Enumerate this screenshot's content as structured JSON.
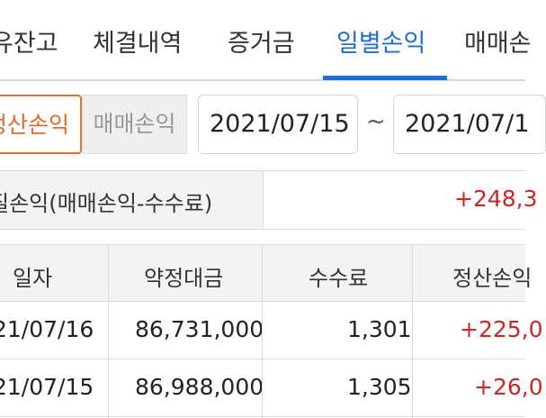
{
  "tabs": [
    {
      "label": "유잔고"
    },
    {
      "label": "체결내역"
    },
    {
      "label": "증거금"
    },
    {
      "label": "일별손익"
    },
    {
      "label": "매매손"
    }
  ],
  "active_tab": "일별손익",
  "filter": {
    "settlement_toggle_label": "정산손익",
    "trade_toggle_label": "매매손익",
    "date_from": "2021/07/15",
    "separator": "~",
    "date_to": "2021/07/1"
  },
  "summary": {
    "label": "질손익(매매손익-수수료)",
    "value": "+248,3"
  },
  "table": {
    "headers": [
      "일자",
      "약정대금",
      "수수료",
      "정산손익"
    ],
    "rows": [
      {
        "date": "21/07/16",
        "amount": "86,731,000",
        "fee": "1,301",
        "pnl": "+225,0"
      },
      {
        "date": "21/07/15",
        "amount": "86,988,000",
        "fee": "1,305",
        "pnl": "+26,0"
      }
    ]
  },
  "colors": {
    "accent": "#1f6fd1",
    "toggle_active": "#e06a2e",
    "profit": "#c62828"
  }
}
